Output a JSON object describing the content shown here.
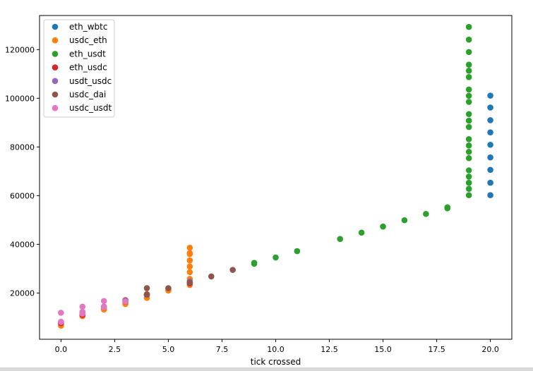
{
  "chart_data": {
    "type": "scatter",
    "title": "",
    "xlabel": "tick crossed",
    "ylabel": "",
    "xlim": [
      -1,
      21
    ],
    "ylim": [
      1000,
      134000
    ],
    "grid": false,
    "legend_position": "top-left",
    "x_ticks": [
      0,
      2.5,
      5,
      7.5,
      10,
      12.5,
      15,
      17.5,
      20
    ],
    "x_tick_labels": [
      "0.0",
      "2.5",
      "5.0",
      "7.5",
      "10.0",
      "12.5",
      "15.0",
      "17.5",
      "20.0"
    ],
    "y_ticks": [
      20000,
      40000,
      60000,
      80000,
      100000,
      120000
    ],
    "y_tick_labels": [
      "20000",
      "40000",
      "60000",
      "80000",
      "100000",
      "120000"
    ],
    "series": [
      {
        "name": "eth_wbtc",
        "color": "#1f77b4",
        "points": [
          [
            20,
            60200
          ],
          [
            20,
            65300
          ],
          [
            20,
            70600
          ],
          [
            20,
            75700
          ],
          [
            20,
            80900
          ],
          [
            20,
            86000
          ],
          [
            20,
            91000
          ],
          [
            20,
            96200
          ],
          [
            20,
            101100
          ]
        ]
      },
      {
        "name": "usdc_eth",
        "color": "#ff7f0e",
        "points": [
          [
            0,
            6600
          ],
          [
            0,
            7200
          ],
          [
            1,
            10500
          ],
          [
            1,
            11000
          ],
          [
            2,
            13200
          ],
          [
            2,
            13900
          ],
          [
            3,
            15500
          ],
          [
            3,
            16200
          ],
          [
            4,
            18000
          ],
          [
            4,
            19000
          ],
          [
            5,
            21000
          ],
          [
            5,
            21800
          ],
          [
            6,
            23300
          ],
          [
            6,
            24300
          ],
          [
            6,
            25800
          ],
          [
            6,
            28600
          ],
          [
            6,
            30900
          ],
          [
            6,
            33400
          ],
          [
            6,
            36000
          ],
          [
            6,
            36400
          ],
          [
            6,
            38600
          ]
        ]
      },
      {
        "name": "eth_usdt",
        "color": "#2ca02c",
        "points": [
          [
            9,
            32000
          ],
          [
            9,
            32400
          ],
          [
            10,
            34600
          ],
          [
            11,
            37200
          ],
          [
            13,
            42200
          ],
          [
            14,
            44800
          ],
          [
            15,
            47300
          ],
          [
            16,
            49900
          ],
          [
            17,
            52500
          ],
          [
            18,
            54800
          ],
          [
            18,
            55200
          ],
          [
            19,
            60200
          ],
          [
            19,
            62800
          ],
          [
            19,
            65300
          ],
          [
            19,
            67800
          ],
          [
            19,
            70400
          ],
          [
            19,
            75400
          ],
          [
            19,
            78000
          ],
          [
            19,
            80600
          ],
          [
            19,
            83200
          ],
          [
            19,
            88200
          ],
          [
            19,
            90800
          ],
          [
            19,
            93500
          ],
          [
            19,
            98500
          ],
          [
            19,
            101000
          ],
          [
            19,
            103600
          ],
          [
            19,
            108700
          ],
          [
            19,
            111300
          ],
          [
            19,
            113800
          ],
          [
            19,
            119000
          ],
          [
            19,
            124100
          ],
          [
            19,
            129300
          ]
        ]
      },
      {
        "name": "eth_usdc",
        "color": "#d62728",
        "points": [
          [
            0,
            7600
          ],
          [
            1,
            11000
          ],
          [
            3,
            16500
          ],
          [
            4,
            19500
          ],
          [
            6,
            24000
          ]
        ]
      },
      {
        "name": "usdt_usdc",
        "color": "#9467bd",
        "points": [
          [
            0,
            8000
          ],
          [
            1,
            11700
          ],
          [
            2,
            14400
          ],
          [
            3,
            17100
          ],
          [
            4,
            19300
          ],
          [
            6,
            24800
          ]
        ]
      },
      {
        "name": "usdc_dai",
        "color": "#8c564b",
        "points": [
          [
            3,
            16800
          ],
          [
            4,
            19300
          ],
          [
            4,
            22000
          ],
          [
            5,
            22000
          ],
          [
            6,
            24300
          ],
          [
            7,
            26800
          ],
          [
            8,
            29500
          ]
        ]
      },
      {
        "name": "usdc_usdt",
        "color": "#e377c2",
        "points": [
          [
            0,
            8200
          ],
          [
            0,
            11900
          ],
          [
            1,
            11500
          ],
          [
            1,
            12300
          ],
          [
            1,
            14400
          ],
          [
            2,
            14200
          ],
          [
            2,
            16700
          ],
          [
            3,
            16600
          ]
        ]
      }
    ]
  }
}
